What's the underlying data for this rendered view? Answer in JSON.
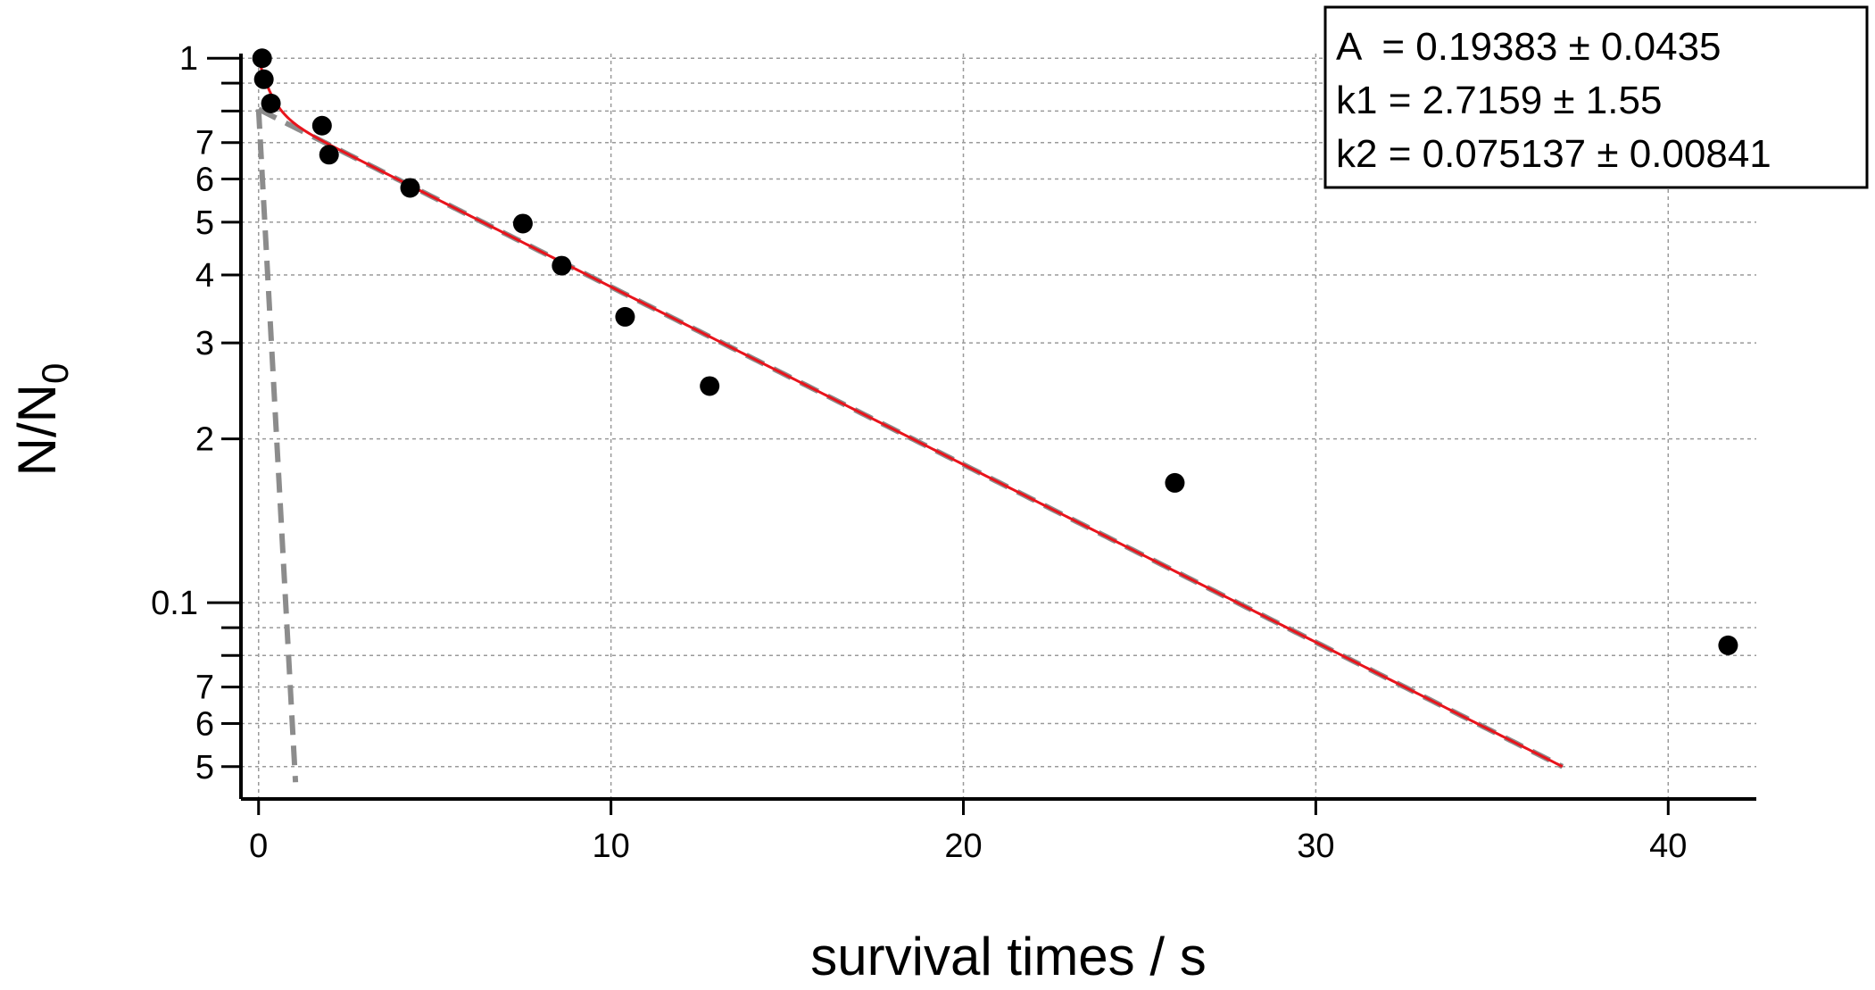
{
  "chart_data": {
    "type": "scatter",
    "xlabel": "survival times / s",
    "ylabel": "N/N",
    "ylabel_subscript": "0",
    "y_scale": "log",
    "grid": true,
    "xlim": [
      -0.5,
      42.5
    ],
    "ylim": [
      0.0465,
      1.02
    ],
    "x_ticks": [
      0,
      10,
      20,
      30,
      40
    ],
    "x_tick_labels": [
      "0",
      "10",
      "20",
      "30",
      "40"
    ],
    "y_major_ticks": [
      {
        "value": 1,
        "label": "1"
      },
      {
        "value": 0.1,
        "label": "0.1"
      }
    ],
    "y_minor_ticks": [
      {
        "value": 0.9,
        "label": ""
      },
      {
        "value": 0.8,
        "label": ""
      },
      {
        "value": 0.7,
        "label": "7"
      },
      {
        "value": 0.6,
        "label": "6"
      },
      {
        "value": 0.5,
        "label": "5"
      },
      {
        "value": 0.4,
        "label": "4"
      },
      {
        "value": 0.3,
        "label": "3"
      },
      {
        "value": 0.2,
        "label": "2"
      },
      {
        "value": 0.09,
        "label": ""
      },
      {
        "value": 0.08,
        "label": ""
      },
      {
        "value": 0.07,
        "label": "7"
      },
      {
        "value": 0.06,
        "label": "6"
      },
      {
        "value": 0.05,
        "label": "5"
      }
    ],
    "points": {
      "x": [
        0.1,
        0.15,
        0.35,
        1.8,
        2.0,
        4.3,
        7.5,
        8.6,
        10.4,
        12.8,
        26.0,
        41.7
      ],
      "y": [
        1.0,
        0.915,
        0.826,
        0.752,
        0.665,
        0.578,
        0.497,
        0.416,
        0.335,
        0.25,
        0.166,
        0.0835
      ]
    },
    "fit": {
      "A": 0.19383,
      "k1": 2.7159,
      "k2": 0.075137,
      "x_end": 37,
      "color": "#e8141c"
    },
    "components_color": "#8c8c8c",
    "point_color": "#000000",
    "annotation": {
      "lines": [
        "A  = 0.19383 ± 0.0435",
        "k1 = 2.7159 ± 1.55",
        "k2 = 0.075137 ± 0.00841"
      ],
      "position": "top-right"
    }
  }
}
